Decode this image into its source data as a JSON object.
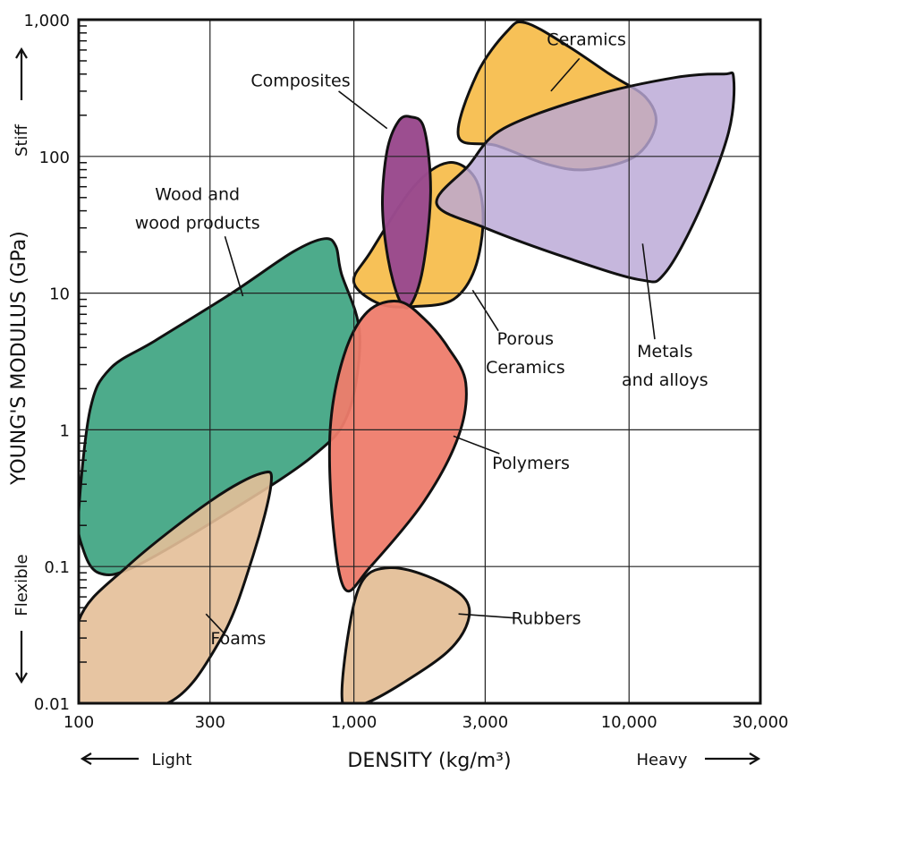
{
  "chart_data": {
    "type": "area",
    "title": "",
    "xlabel": "DENSITY (kg/m³)",
    "ylabel": "YOUNG'S MODULUS (GPa)",
    "x_scale": "log",
    "y_scale": "log",
    "xlim": [
      100,
      30000
    ],
    "ylim": [
      0.01,
      1000
    ],
    "grid": true,
    "x_ticks": [
      100,
      300,
      1000,
      3000,
      10000,
      30000
    ],
    "x_tick_labels": [
      "100",
      "300",
      "1,000",
      "3,000",
      "10,000",
      "30,000"
    ],
    "y_ticks": [
      0.01,
      0.1,
      1,
      10,
      100,
      1000
    ],
    "y_tick_labels": [
      "0.01",
      "0.1",
      "1",
      "10",
      "100",
      "1,000"
    ],
    "x_direction_labels": {
      "left": "Light",
      "right": "Heavy"
    },
    "y_direction_labels": {
      "bottom": "Flexible",
      "top": "Stiff"
    },
    "series": [
      {
        "name": "Ceramics",
        "color": "#F7BE4E",
        "opacity": 0.95,
        "label_at": [
          7000,
          650
        ],
        "leader": [
          [
            6600,
            520
          ],
          [
            5200,
            300
          ]
        ],
        "points": [
          [
            2400,
            140
          ],
          [
            2800,
            400
          ],
          [
            3600,
            820
          ],
          [
            4200,
            950
          ],
          [
            6000,
            640
          ],
          [
            8500,
            400
          ],
          [
            11500,
            270
          ],
          [
            12500,
            170
          ],
          [
            10500,
            100
          ],
          [
            7000,
            80
          ],
          [
            5000,
            88
          ],
          [
            3300,
            120
          ],
          [
            2400,
            140
          ]
        ]
      },
      {
        "name": "Porous Ceramics",
        "color": "#F7BE4E",
        "opacity": 0.95,
        "label_at": [
          4200,
          4.2
        ],
        "leader": [
          [
            3350,
            5.3
          ],
          [
            2700,
            10.5
          ]
        ],
        "points": [
          [
            1000,
            12
          ],
          [
            1150,
            20
          ],
          [
            1650,
            60
          ],
          [
            2200,
            90
          ],
          [
            2750,
            70
          ],
          [
            2950,
            35
          ],
          [
            2750,
            15
          ],
          [
            2300,
            9
          ],
          [
            1700,
            8
          ],
          [
            1250,
            8.3
          ],
          [
            1000,
            12
          ]
        ]
      },
      {
        "name": "Composites",
        "color": "#9A4A8E",
        "opacity": 0.98,
        "label_at": [
          640,
          325
        ],
        "leader": [
          [
            880,
            300
          ],
          [
            1320,
            160
          ]
        ],
        "points": [
          [
            1320,
            110
          ],
          [
            1450,
            180
          ],
          [
            1600,
            195
          ],
          [
            1800,
            160
          ],
          [
            1900,
            55
          ],
          [
            1780,
            15
          ],
          [
            1600,
            8.1
          ],
          [
            1460,
            9
          ],
          [
            1330,
            18
          ],
          [
            1270,
            45
          ],
          [
            1320,
            110
          ]
        ]
      },
      {
        "name": "Metals and alloys",
        "color": "#B9A7D6",
        "opacity": 0.82,
        "label_at": [
          13500,
          3.4
        ],
        "leader": [
          [
            12400,
            4.6
          ],
          [
            11200,
            23
          ]
        ],
        "points": [
          [
            2000,
            45
          ],
          [
            2600,
            85
          ],
          [
            3500,
            160
          ],
          [
            7500,
            280
          ],
          [
            15000,
            380
          ],
          [
            22000,
            400
          ],
          [
            24000,
            370
          ],
          [
            23000,
            150
          ],
          [
            18000,
            40
          ],
          [
            13500,
            14
          ],
          [
            11000,
            12.5
          ],
          [
            6000,
            18
          ],
          [
            3000,
            30
          ],
          [
            2000,
            45
          ]
        ]
      },
      {
        "name": "Wood and wood products",
        "color": "#3FA582",
        "opacity": 0.93,
        "label_at": [
          270,
          48
        ],
        "leader": [
          [
            340,
            26
          ],
          [
            395,
            9.5
          ]
        ],
        "points": [
          [
            100,
            0.25
          ],
          [
            103,
            0.14
          ],
          [
            118,
            0.09
          ],
          [
            160,
            0.1
          ],
          [
            350,
            0.25
          ],
          [
            700,
            0.63
          ],
          [
            950,
            1.3
          ],
          [
            1050,
            5
          ],
          [
            900,
            14
          ],
          [
            860,
            22
          ],
          [
            780,
            25
          ],
          [
            600,
            20
          ],
          [
            360,
            10
          ],
          [
            190,
            4.5
          ],
          [
            130,
            2.8
          ],
          [
            110,
            1.4
          ],
          [
            100,
            0.25
          ]
        ]
      },
      {
        "name": "Polymers",
        "color": "#EE7C6B",
        "opacity": 0.95,
        "label_at": [
          4400,
          0.52
        ],
        "leader": [
          [
            3380,
            0.67
          ],
          [
            2300,
            0.9
          ]
        ],
        "points": [
          [
            840,
            0.2
          ],
          [
            820,
            1.0
          ],
          [
            920,
            3.5
          ],
          [
            1120,
            7.3
          ],
          [
            1450,
            8.7
          ],
          [
            1800,
            6.5
          ],
          [
            2200,
            4.0
          ],
          [
            2550,
            2.2
          ],
          [
            2400,
            0.9
          ],
          [
            1800,
            0.3
          ],
          [
            1150,
            0.1
          ],
          [
            930,
            0.068
          ],
          [
            840,
            0.2
          ]
        ]
      },
      {
        "name": "Foams",
        "color": "#E4BF98",
        "opacity": 0.9,
        "label_at": [
          380,
          0.027
        ],
        "leader": [
          [
            340,
            0.032
          ],
          [
            290,
            0.045
          ]
        ],
        "points": [
          [
            100,
            0.01
          ],
          [
            100,
            0.04
          ],
          [
            150,
            0.1
          ],
          [
            300,
            0.3
          ],
          [
            460,
            0.48
          ],
          [
            500,
            0.4
          ],
          [
            430,
            0.12
          ],
          [
            330,
            0.03
          ],
          [
            210,
            0.01
          ],
          [
            100,
            0.01
          ]
        ]
      },
      {
        "name": "Rubbers",
        "color": "#E4BF98",
        "opacity": 0.95,
        "label_at": [
          5000,
          0.038
        ],
        "leader": [
          [
            3900,
            0.042
          ],
          [
            2400,
            0.045
          ]
        ],
        "points": [
          [
            910,
            0.01
          ],
          [
            960,
            0.035
          ],
          [
            1080,
            0.08
          ],
          [
            1350,
            0.098
          ],
          [
            1850,
            0.085
          ],
          [
            2500,
            0.06
          ],
          [
            2600,
            0.04
          ],
          [
            2200,
            0.024
          ],
          [
            1500,
            0.014
          ],
          [
            1100,
            0.01
          ],
          [
            910,
            0.01
          ]
        ]
      }
    ]
  }
}
